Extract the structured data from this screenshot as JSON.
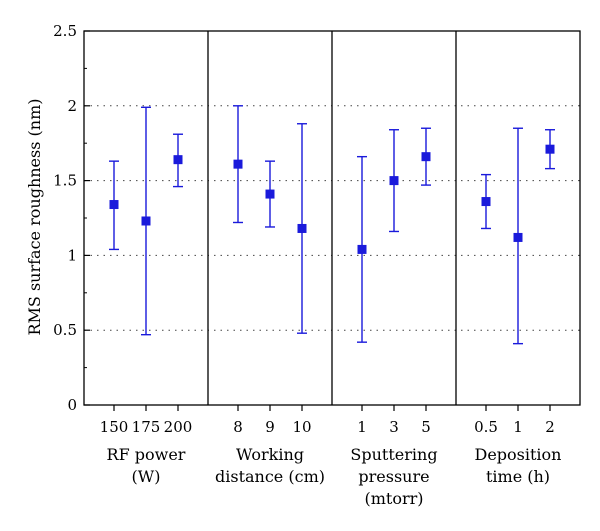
{
  "chart_data": {
    "type": "scatter",
    "title": "",
    "ylabel": "RMS surface roughness (nm)",
    "ylim": [
      0,
      2.5
    ],
    "yticks": [
      "0",
      "0.5",
      "1",
      "1.5",
      "2",
      "2.5"
    ],
    "grid": "horizontal dotted",
    "marker_color": "#1a1adb",
    "groups": [
      {
        "label_lines": [
          "RF power",
          "(W)"
        ],
        "points": [
          {
            "x": "150",
            "y": 1.34,
            "low": 1.04,
            "high": 1.63
          },
          {
            "x": "175",
            "y": 1.23,
            "low": 0.47,
            "high": 1.99
          },
          {
            "x": "200",
            "y": 1.64,
            "low": 1.46,
            "high": 1.81
          }
        ]
      },
      {
        "label_lines": [
          "Working",
          "distance (cm)"
        ],
        "points": [
          {
            "x": "8",
            "y": 1.61,
            "low": 1.22,
            "high": 2.0
          },
          {
            "x": "9",
            "y": 1.41,
            "low": 1.19,
            "high": 1.63
          },
          {
            "x": "10",
            "y": 1.18,
            "low": 0.48,
            "high": 1.88
          }
        ]
      },
      {
        "label_lines": [
          "Sputtering",
          "pressure",
          "(mtorr)"
        ],
        "points": [
          {
            "x": "1",
            "y": 1.04,
            "low": 0.42,
            "high": 1.66
          },
          {
            "x": "3",
            "y": 1.5,
            "low": 1.16,
            "high": 1.84
          },
          {
            "x": "5",
            "y": 1.66,
            "low": 1.47,
            "high": 1.85
          }
        ]
      },
      {
        "label_lines": [
          "Deposition",
          "time (h)"
        ],
        "points": [
          {
            "x": "0.5",
            "y": 1.36,
            "low": 1.18,
            "high": 1.54
          },
          {
            "x": "1",
            "y": 1.12,
            "low": 0.41,
            "high": 1.85
          },
          {
            "x": "2",
            "y": 1.71,
            "low": 1.58,
            "high": 1.84
          }
        ]
      }
    ]
  }
}
